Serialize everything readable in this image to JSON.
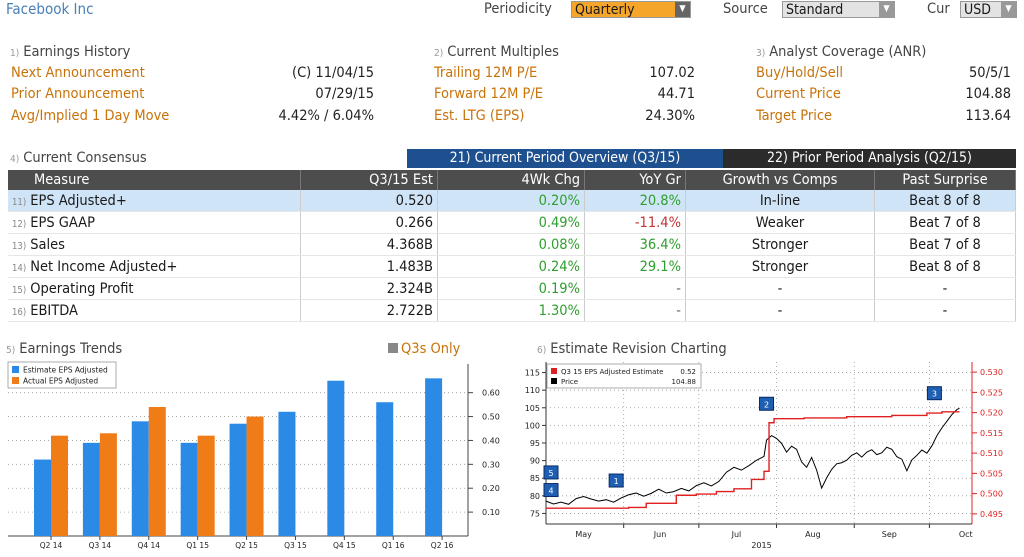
{
  "header": {
    "title": "Facebook Inc",
    "periodicity_label": "Periodicity",
    "periodicity_value": "Quarterly",
    "source_label": "Source",
    "source_value": "Standard",
    "cur_label": "Cur",
    "cur_value": "USD"
  },
  "earnings_history": {
    "num": "1)",
    "title": "Earnings History",
    "rows": [
      {
        "label": "Next Announcement",
        "value": "(C)  11/04/15"
      },
      {
        "label": "Prior Announcement",
        "value": "07/29/15"
      },
      {
        "label": "Avg/Implied 1 Day Move",
        "value": "4.42% / 6.04%"
      }
    ]
  },
  "current_multiples": {
    "num": "2)",
    "title": "Current Multiples",
    "rows": [
      {
        "label": "Trailing 12M P/E",
        "value": "107.02"
      },
      {
        "label": "Forward 12M P/E",
        "value": "44.71"
      },
      {
        "label": "Est. LTG (EPS)",
        "value": "24.30%"
      }
    ]
  },
  "analyst_coverage": {
    "num": "3)",
    "title": "Analyst Coverage (ANR)",
    "rows": [
      {
        "label": "Buy/Hold/Sell",
        "value": "50/5/1"
      },
      {
        "label": "Current Price",
        "value": "104.88"
      },
      {
        "label": "Target Price",
        "value": "113.64"
      }
    ]
  },
  "consensus": {
    "num": "4)",
    "title": "Current Consensus",
    "tabs": [
      {
        "label": "21) Current Period Overview (Q3/15)"
      },
      {
        "label": "22) Prior Period Analysis (Q2/15)"
      }
    ],
    "columns": [
      "Measure",
      "Q3/15 Est",
      "4Wk Chg",
      "YoY Gr",
      "Growth vs Comps",
      "Past Surprise"
    ],
    "rows": [
      {
        "n": "11)",
        "measure": "EPS Adjusted+",
        "est": "0.520",
        "chg": "0.20%",
        "yoy": "20.8%",
        "yoy_sign": "pos",
        "comps": "In-line",
        "surprise": "Beat 8 of 8"
      },
      {
        "n": "12)",
        "measure": "EPS GAAP",
        "est": "0.266",
        "chg": "0.49%",
        "yoy": "-11.4%",
        "yoy_sign": "neg",
        "comps": "Weaker",
        "surprise": "Beat 7 of 8"
      },
      {
        "n": "13)",
        "measure": "Sales",
        "est": "4.368B",
        "chg": "0.08%",
        "yoy": "36.4%",
        "yoy_sign": "pos",
        "comps": "Stronger",
        "surprise": "Beat 7 of 8"
      },
      {
        "n": "14)",
        "measure": "Net Income Adjusted+",
        "est": "1.483B",
        "chg": "0.24%",
        "yoy": "29.1%",
        "yoy_sign": "pos",
        "comps": "Stronger",
        "surprise": "Beat 8 of 8"
      },
      {
        "n": "15)",
        "measure": "Operating Profit",
        "est": "2.324B",
        "chg": "0.19%",
        "yoy": "-",
        "yoy_sign": "none",
        "comps": "-",
        "surprise": "-"
      },
      {
        "n": "16)",
        "measure": "EBITDA",
        "est": "2.722B",
        "chg": "1.30%",
        "yoy": "-",
        "yoy_sign": "none",
        "comps": "-",
        "surprise": "-"
      }
    ]
  },
  "earnings_trends": {
    "num": "5)",
    "title": "Earnings Trends",
    "q3_only": "Q3s Only"
  },
  "revision": {
    "num": "6)",
    "title": "Estimate Revision Charting"
  },
  "chart_data": [
    {
      "type": "bar",
      "categories": [
        "Q2 14",
        "Q3 14",
        "Q4 14",
        "Q1 15",
        "Q2 15",
        "Q3 15",
        "Q4 15",
        "Q1 16",
        "Q2 16"
      ],
      "series": [
        {
          "name": "Estimate EPS Adjusted",
          "color": "#2a8ae6",
          "values": [
            0.32,
            0.39,
            0.48,
            0.39,
            0.47,
            0.52,
            0.65,
            0.56,
            0.66
          ]
        },
        {
          "name": "Actual EPS Adjusted",
          "color": "#f07c17",
          "values": [
            0.42,
            0.43,
            0.54,
            0.42,
            0.5,
            null,
            null,
            null,
            null
          ]
        }
      ],
      "y_ticks": [
        "0.10",
        "0.20",
        "0.30",
        "0.40",
        "0.50",
        "0.60"
      ],
      "ylim": [
        0,
        0.72
      ],
      "legend": "top-left"
    },
    {
      "type": "line",
      "legend_rows": [
        {
          "name": "Q3 15 EPS Adjusted Estimate",
          "value": "0.52",
          "color": "#e02020"
        },
        {
          "name": "Price",
          "value": "104.88",
          "color": "#000000"
        }
      ],
      "x_labels": [
        "May",
        "Jun",
        "Jul",
        "Aug",
        "Sep",
        "Oct"
      ],
      "x_year": "2015",
      "y_left_ticks": [
        "75",
        "80",
        "85",
        "90",
        "95",
        "100",
        "105",
        "110",
        "115"
      ],
      "y_right_ticks": [
        "0.495",
        "0.500",
        "0.505",
        "0.510",
        "0.515",
        "0.520",
        "0.525",
        "0.530"
      ],
      "left_range": [
        72,
        118
      ],
      "right_range": [
        0.4925,
        0.5325
      ],
      "price": [
        [
          0,
          78.5
        ],
        [
          3,
          77.7
        ],
        [
          6,
          78.2
        ],
        [
          9,
          77.6
        ],
        [
          12,
          79.2
        ],
        [
          15,
          79.8
        ],
        [
          18,
          79.1
        ],
        [
          21,
          78.5
        ],
        [
          24,
          78.9
        ],
        [
          27,
          78.2
        ],
        [
          30,
          79.4
        ],
        [
          33,
          80.3
        ],
        [
          36,
          80.8
        ],
        [
          39,
          79.9
        ],
        [
          42,
          80.7
        ],
        [
          45,
          81.9
        ],
        [
          48,
          80.8
        ],
        [
          51,
          81.2
        ],
        [
          54,
          82.1
        ],
        [
          57,
          81.4
        ],
        [
          60,
          82.9
        ],
        [
          63,
          83.7
        ],
        [
          66,
          82.8
        ],
        [
          69,
          84.1
        ],
        [
          72,
          86.7
        ],
        [
          75,
          88.1
        ],
        [
          78,
          87.3
        ],
        [
          81,
          88.6
        ],
        [
          84,
          90.1
        ],
        [
          87,
          91.2
        ],
        [
          88,
          95.8
        ],
        [
          90,
          97.1
        ],
        [
          92,
          96.3
        ],
        [
          94,
          94.9
        ],
        [
          96,
          92.4
        ],
        [
          98,
          94.1
        ],
        [
          100,
          93.2
        ],
        [
          102,
          89.6
        ],
        [
          104,
          88.1
        ],
        [
          106,
          90.9
        ],
        [
          108,
          87.3
        ],
        [
          110,
          82.2
        ],
        [
          112,
          85.1
        ],
        [
          114,
          87.5
        ],
        [
          116,
          89.1
        ],
        [
          118,
          89.4
        ],
        [
          120,
          90.1
        ],
        [
          122,
          91.5
        ],
        [
          124,
          92.2
        ],
        [
          126,
          91.0
        ],
        [
          128,
          92.4
        ],
        [
          130,
          93.1
        ],
        [
          132,
          91.7
        ],
        [
          134,
          92.2
        ],
        [
          136,
          93.8
        ],
        [
          138,
          93.2
        ],
        [
          140,
          91.1
        ],
        [
          142,
          90.4
        ],
        [
          144,
          87.1
        ],
        [
          146,
          90.2
        ],
        [
          148,
          91.5
        ],
        [
          150,
          93.0
        ],
        [
          152,
          92.1
        ],
        [
          154,
          94.2
        ],
        [
          156,
          97.1
        ],
        [
          158,
          99.3
        ],
        [
          160,
          101.2
        ],
        [
          162,
          103.1
        ],
        [
          164,
          104.5
        ],
        [
          165,
          104.88
        ]
      ],
      "estimate": [
        [
          0,
          0.4964
        ],
        [
          20,
          0.4964
        ],
        [
          33,
          0.4966
        ],
        [
          40,
          0.4976
        ],
        [
          52,
          0.4996
        ],
        [
          60,
          0.4999
        ],
        [
          68,
          0.5005
        ],
        [
          75,
          0.5012
        ],
        [
          82,
          0.5035
        ],
        [
          87,
          0.5055
        ],
        [
          89,
          0.5175
        ],
        [
          91,
          0.5185
        ],
        [
          103,
          0.5187
        ],
        [
          120,
          0.519
        ],
        [
          138,
          0.5193
        ],
        [
          152,
          0.5199
        ],
        [
          158,
          0.5202
        ],
        [
          165,
          0.5202
        ]
      ],
      "markers": [
        {
          "label": "5",
          "x": 2,
          "y": 86.5,
          "color": "#1f5fb3"
        },
        {
          "label": "4",
          "x": 2,
          "y": 81.5,
          "color": "#1f5fb3"
        },
        {
          "label": "1",
          "x": 28,
          "y": 84.2,
          "color": "#1f5fb3"
        },
        {
          "label": "2",
          "x": 88,
          "y": 106.0,
          "color": "#1f5fb3"
        },
        {
          "label": "3",
          "x": 155,
          "y": 109.0,
          "color": "#1f5fb3"
        }
      ]
    }
  ]
}
